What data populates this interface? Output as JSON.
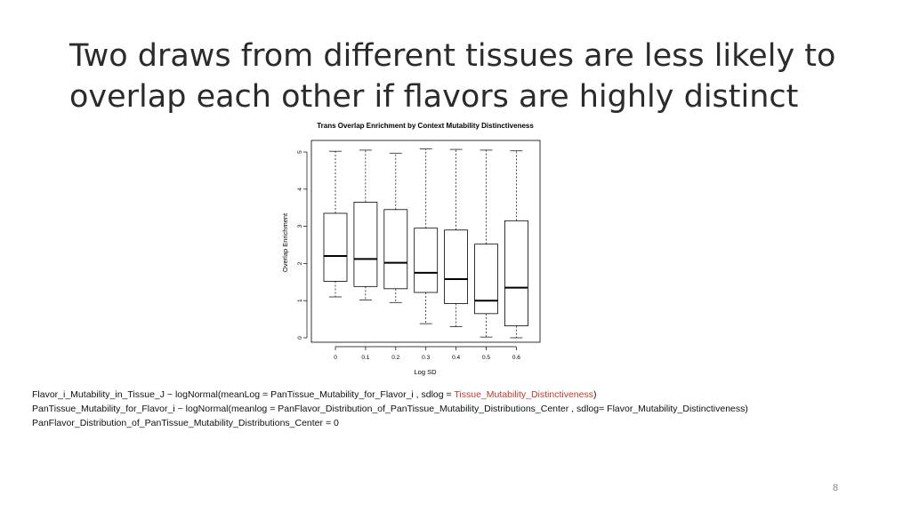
{
  "slide": {
    "title_line1": "Two draws from different tissues are less likely to",
    "title_line2": "overlap each other if flavors are highly distinct",
    "page_number": "8"
  },
  "formulas": {
    "line1_prefix": "Flavor_i_Mutability_in_Tissue_J ~ logNormal(meanLog = PanTissue_Mutability_for_Flavor_i , sdlog = ",
    "line1_highlight": "Tissue_Mutability_Distinctiveness",
    "line1_suffix": ")",
    "line2": "PanTissue_Mutability_for_Flavor_i ~ logNormal(meanlog = PanFlavor_Distribution_of_PanTissue_Mutability_Distributions_Center , sdlog= Flavor_Mutability_Distinctiveness)",
    "line3": "PanFlavor_Distribution_of_PanTissue_Mutability_Distributions_Center = 0",
    "highlight_color": "#c0392b"
  },
  "chart_data": {
    "type": "boxplot",
    "title": "Trans Overlap Enrichment by Context Mutability Distinctiveness",
    "xlabel": "Log SD",
    "ylabel": "Overlap Enrichment",
    "categories": [
      "0",
      "0.1",
      "0.2",
      "0.3",
      "0.4",
      "0.5",
      "0.6"
    ],
    "yticks": [
      "0",
      "1",
      "2",
      "3",
      "4",
      "5"
    ],
    "ylim": [
      0,
      5.1
    ],
    "boxes": [
      {
        "category": "0",
        "min": 1.1,
        "q1": 1.52,
        "median": 2.2,
        "q3": 3.35,
        "max": 5.02
      },
      {
        "category": "0.1",
        "min": 1.02,
        "q1": 1.38,
        "median": 2.12,
        "q3": 3.65,
        "max": 5.05
      },
      {
        "category": "0.2",
        "min": 0.95,
        "q1": 1.32,
        "median": 2.02,
        "q3": 3.45,
        "max": 4.97
      },
      {
        "category": "0.3",
        "min": 0.38,
        "q1": 1.22,
        "median": 1.75,
        "q3": 2.95,
        "max": 5.08
      },
      {
        "category": "0.4",
        "min": 0.3,
        "q1": 0.92,
        "median": 1.58,
        "q3": 2.9,
        "max": 5.07
      },
      {
        "category": "0.5",
        "min": 0.02,
        "q1": 0.65,
        "median": 1.0,
        "q3": 2.52,
        "max": 5.05
      },
      {
        "category": "0.6",
        "min": 0.0,
        "q1": 0.32,
        "median": 1.35,
        "q3": 3.15,
        "max": 5.03
      }
    ],
    "grid": false,
    "box_fill": "#ffffff",
    "stroke": "#000000"
  }
}
